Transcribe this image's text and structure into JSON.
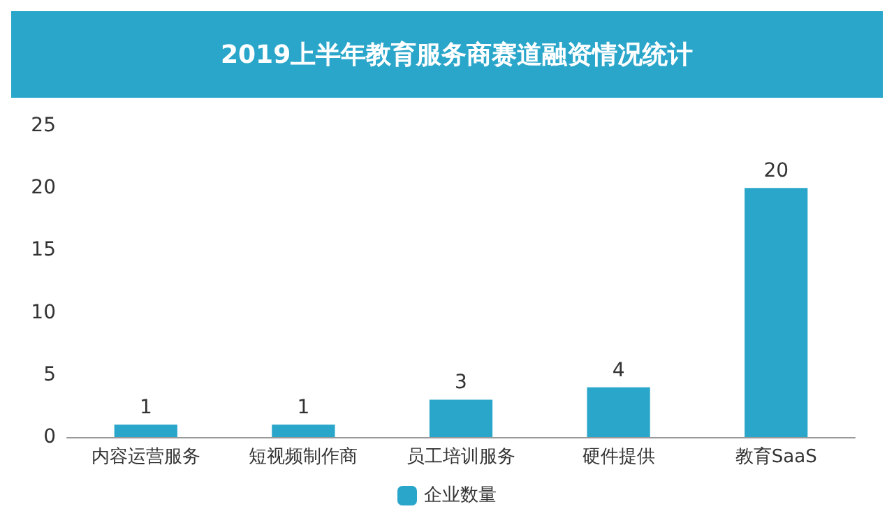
{
  "chart_data": {
    "type": "bar",
    "title": "2019上半年教育服务商赛道融资情况统计",
    "categories": [
      "内容运营服务",
      "短视频制作商",
      "员工培训服务",
      "硬件提供",
      "教育SaaS"
    ],
    "series": [
      {
        "name": "企业数量",
        "color": "#2aa6ca",
        "values": [
          1,
          1,
          3,
          4,
          20
        ]
      }
    ],
    "ylim": [
      0,
      25
    ],
    "yticks": [
      0,
      5,
      10,
      15,
      20,
      25
    ],
    "grid": false,
    "legend": "bottom",
    "data_labels": true
  }
}
